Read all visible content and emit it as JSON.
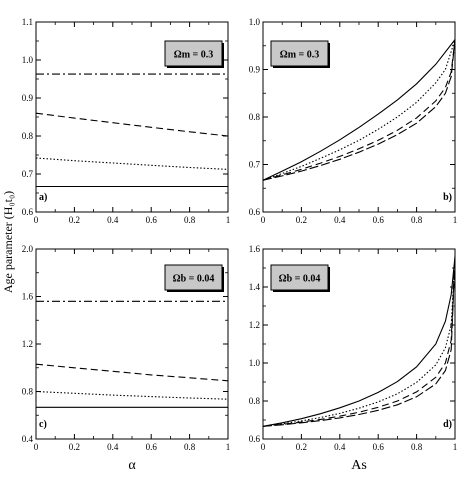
{
  "figure": {
    "ylabel": "Age parameter (H₀t₀)",
    "styles": {
      "solid": "",
      "dashdot": "8,3,2,3",
      "dashed": "7,4",
      "dotted": "1.5,2",
      "dashed_long": "9,3"
    }
  },
  "chart_data": [
    {
      "type": "line",
      "panel_label": "a)",
      "annotation": "Ωm = 0.3",
      "xlabel": "",
      "ylabel": "",
      "xlim": [
        0,
        1
      ],
      "ylim": [
        0.6,
        1.1
      ],
      "xticks": [
        0,
        0.2,
        0.4,
        0.6,
        0.8,
        1
      ],
      "yticks": [
        0.6,
        0.7,
        0.8,
        0.9,
        1.0,
        1.1
      ],
      "xtick_labels": [
        "0",
        "0.2",
        "0.4",
        "0.6",
        "0.8",
        "1"
      ],
      "ytick_labels": [
        "0.6",
        "0.7",
        "0.8",
        "0.9",
        "1.0",
        "1.1"
      ],
      "series": [
        {
          "style": "dashdot",
          "x": [
            0,
            0.5,
            1
          ],
          "y": [
            0.963,
            0.963,
            0.963
          ]
        },
        {
          "style": "dashed",
          "x": [
            0,
            0.2,
            0.4,
            0.6,
            0.8,
            1
          ],
          "y": [
            0.86,
            0.847,
            0.835,
            0.823,
            0.811,
            0.8
          ]
        },
        {
          "style": "dotted",
          "x": [
            0,
            0.2,
            0.4,
            0.6,
            0.8,
            1
          ],
          "y": [
            0.742,
            0.735,
            0.729,
            0.723,
            0.717,
            0.712
          ]
        },
        {
          "style": "solid",
          "x": [
            0,
            0.5,
            1
          ],
          "y": [
            0.667,
            0.667,
            0.667
          ]
        }
      ]
    },
    {
      "type": "line",
      "panel_label": "b)",
      "annotation": "Ωm = 0.3",
      "xlabel": "",
      "ylabel": "",
      "xlim": [
        0,
        1
      ],
      "ylim": [
        0.6,
        1.0
      ],
      "xticks": [
        0,
        0.2,
        0.4,
        0.6,
        0.8,
        1
      ],
      "yticks": [
        0.6,
        0.7,
        0.8,
        0.9,
        1.0
      ],
      "xtick_labels": [
        "0",
        "0.2",
        "0.4",
        "0.6",
        "0.8",
        "1"
      ],
      "ytick_labels": [
        "0.6",
        "0.7",
        "0.8",
        "0.9",
        "1.0"
      ],
      "series": [
        {
          "style": "solid",
          "x": [
            0,
            0.1,
            0.2,
            0.3,
            0.4,
            0.5,
            0.6,
            0.7,
            0.8,
            0.9,
            1.0
          ],
          "y": [
            0.667,
            0.686,
            0.706,
            0.728,
            0.752,
            0.778,
            0.806,
            0.836,
            0.87,
            0.911,
            0.963
          ]
        },
        {
          "style": "dotted",
          "x": [
            0,
            0.1,
            0.2,
            0.3,
            0.4,
            0.5,
            0.6,
            0.7,
            0.8,
            0.9,
            0.95,
            1.0
          ],
          "y": [
            0.667,
            0.681,
            0.696,
            0.713,
            0.731,
            0.751,
            0.774,
            0.8,
            0.831,
            0.872,
            0.9,
            0.963
          ]
        },
        {
          "style": "dashed",
          "x": [
            0,
            0.1,
            0.2,
            0.3,
            0.4,
            0.5,
            0.6,
            0.7,
            0.8,
            0.9,
            0.95,
            0.98,
            1.0
          ],
          "y": [
            0.667,
            0.678,
            0.69,
            0.703,
            0.717,
            0.733,
            0.751,
            0.772,
            0.798,
            0.834,
            0.862,
            0.895,
            0.963
          ]
        },
        {
          "style": "dashed_long",
          "x": [
            0,
            0.1,
            0.2,
            0.3,
            0.4,
            0.5,
            0.6,
            0.7,
            0.8,
            0.9,
            0.95,
            0.98,
            1.0
          ],
          "y": [
            0.667,
            0.676,
            0.686,
            0.698,
            0.711,
            0.726,
            0.743,
            0.763,
            0.787,
            0.822,
            0.85,
            0.885,
            0.963
          ]
        }
      ]
    },
    {
      "type": "line",
      "panel_label": "c)",
      "annotation": "Ωb = 0.04",
      "xlabel": "α",
      "ylabel": "",
      "xlim": [
        0,
        1
      ],
      "ylim": [
        0.4,
        2.0
      ],
      "xticks": [
        0,
        0.2,
        0.4,
        0.6,
        0.8,
        1
      ],
      "yticks": [
        0.4,
        0.8,
        1.2,
        1.6,
        2.0
      ],
      "xtick_labels": [
        "0",
        "0.2",
        "0.4",
        "0.6",
        "0.8",
        "1"
      ],
      "ytick_labels": [
        "0.4",
        "0.8",
        "1.2",
        "1.6",
        "2.0"
      ],
      "series": [
        {
          "style": "dashdot",
          "x": [
            0,
            0.5,
            1
          ],
          "y": [
            1.56,
            1.56,
            1.56
          ]
        },
        {
          "style": "dashed",
          "x": [
            0,
            0.2,
            0.4,
            0.6,
            0.8,
            1
          ],
          "y": [
            1.03,
            1.0,
            0.97,
            0.94,
            0.915,
            0.89
          ]
        },
        {
          "style": "dotted",
          "x": [
            0,
            0.2,
            0.4,
            0.6,
            0.8,
            1
          ],
          "y": [
            0.8,
            0.785,
            0.77,
            0.757,
            0.745,
            0.735
          ]
        },
        {
          "style": "solid",
          "x": [
            0,
            0.5,
            1
          ],
          "y": [
            0.667,
            0.667,
            0.667
          ]
        }
      ]
    },
    {
      "type": "line",
      "panel_label": "d)",
      "annotation": "Ωb = 0.04",
      "xlabel": "As",
      "ylabel": "",
      "xlim": [
        0,
        1
      ],
      "ylim": [
        0.6,
        1.6
      ],
      "xticks": [
        0,
        0.2,
        0.4,
        0.6,
        0.8,
        1
      ],
      "yticks": [
        0.6,
        0.8,
        1.0,
        1.2,
        1.4,
        1.6
      ],
      "xtick_labels": [
        "0",
        "0.2",
        "0.4",
        "0.6",
        "0.8",
        "1"
      ],
      "ytick_labels": [
        "0.6",
        "0.8",
        "1.0",
        "1.2",
        "1.4",
        "1.6"
      ],
      "series": [
        {
          "style": "solid",
          "x": [
            0,
            0.1,
            0.2,
            0.3,
            0.4,
            0.5,
            0.6,
            0.7,
            0.8,
            0.9,
            0.95,
            0.98,
            1.0
          ],
          "y": [
            0.667,
            0.685,
            0.707,
            0.733,
            0.764,
            0.8,
            0.845,
            0.902,
            0.98,
            1.1,
            1.22,
            1.36,
            1.56
          ]
        },
        {
          "style": "dotted",
          "x": [
            0,
            0.1,
            0.2,
            0.3,
            0.4,
            0.5,
            0.6,
            0.7,
            0.8,
            0.9,
            0.95,
            0.98,
            1.0
          ],
          "y": [
            0.667,
            0.68,
            0.695,
            0.713,
            0.735,
            0.762,
            0.795,
            0.838,
            0.898,
            0.99,
            1.08,
            1.2,
            1.56
          ]
        },
        {
          "style": "dashed",
          "x": [
            0,
            0.1,
            0.2,
            0.3,
            0.4,
            0.5,
            0.6,
            0.7,
            0.8,
            0.9,
            0.95,
            0.98,
            1.0
          ],
          "y": [
            0.667,
            0.677,
            0.689,
            0.703,
            0.72,
            0.741,
            0.767,
            0.8,
            0.848,
            0.925,
            1.0,
            1.12,
            1.56
          ]
        },
        {
          "style": "dashed_long",
          "x": [
            0,
            0.1,
            0.2,
            0.3,
            0.4,
            0.5,
            0.6,
            0.7,
            0.8,
            0.9,
            0.95,
            0.98,
            1.0
          ],
          "y": [
            0.667,
            0.675,
            0.685,
            0.697,
            0.711,
            0.729,
            0.751,
            0.78,
            0.822,
            0.89,
            0.96,
            1.07,
            1.56
          ]
        }
      ]
    }
  ]
}
